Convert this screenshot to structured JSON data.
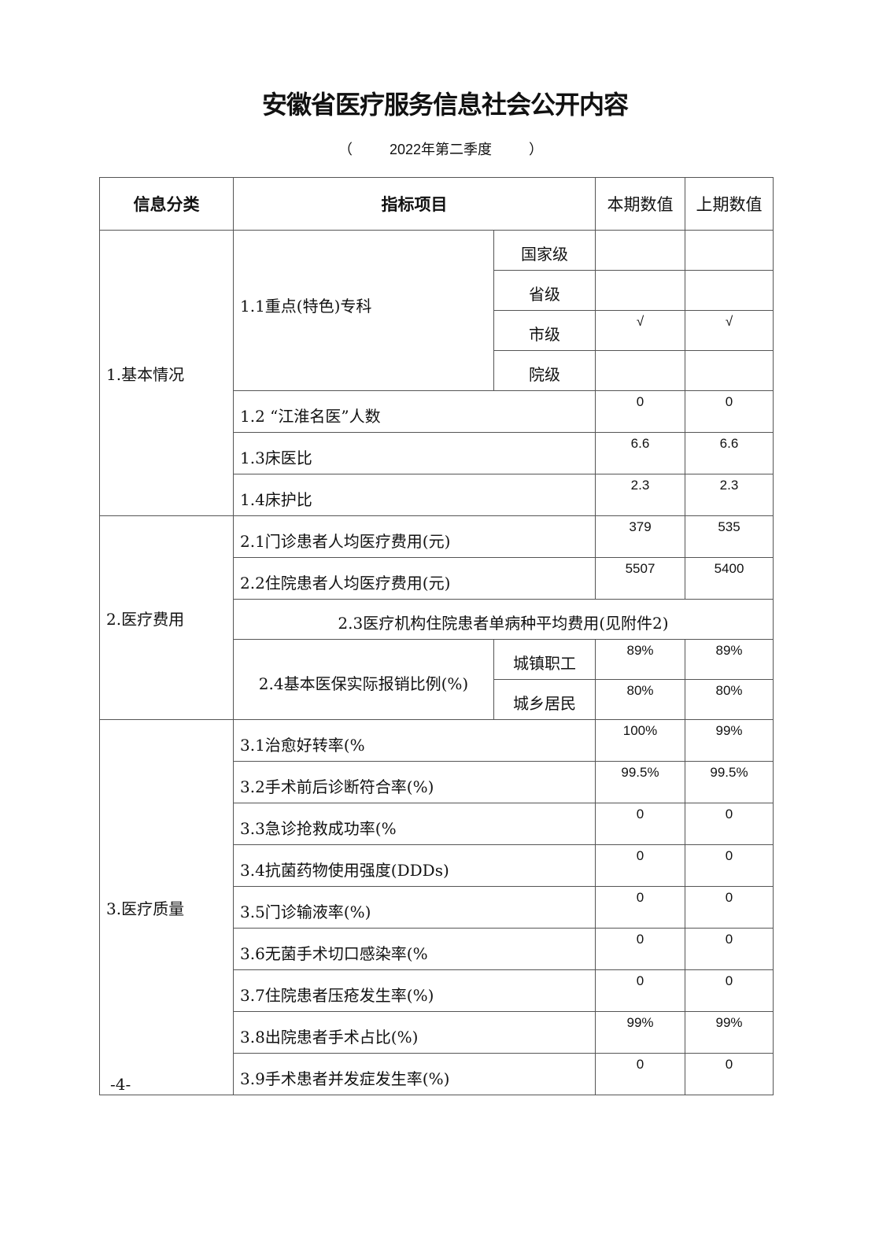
{
  "title": "安徽省医疗服务信息社会公开内容",
  "subtitle": {
    "open": "（",
    "period": "2022年第二季度",
    "close": "）"
  },
  "table": {
    "headers": {
      "category": "信息分类",
      "item": "指标项目",
      "current": "本期数值",
      "previous": "上期数值"
    },
    "section1": {
      "category": "1.基本情况",
      "specialty": {
        "label": "1.1重点(特色)专科",
        "levels": [
          {
            "level": "国家级",
            "current": "",
            "previous": ""
          },
          {
            "level": "省级",
            "current": "",
            "previous": ""
          },
          {
            "level": "市级",
            "current": "√",
            "previous": "√"
          },
          {
            "level": "院级",
            "current": "",
            "previous": ""
          }
        ]
      },
      "rows": [
        {
          "label": "1.2 “江淮名医”人数",
          "current": "0",
          "previous": "0"
        },
        {
          "label": "1.3床医比",
          "current": "6.6",
          "previous": "6.6"
        },
        {
          "label": "1.4床护比",
          "current": "2.3",
          "previous": "2.3"
        }
      ]
    },
    "section2": {
      "category": "2.医疗费用",
      "rows": [
        {
          "label": "2.1门诊患者人均医疗费用(元)",
          "current": "379",
          "previous": "535"
        },
        {
          "label": "2.2住院患者人均医疗费用(元)",
          "current": "5507",
          "previous": "5400"
        }
      ],
      "note": "2.3医疗机构住院患者单病种平均费用(见附件2)",
      "insurance": {
        "label": "2.4基本医保实际报销比例(%)",
        "types": [
          {
            "type": "城镇职工",
            "current": "89%",
            "previous": "89%"
          },
          {
            "type": "城乡居民",
            "current": "80%",
            "previous": "80%"
          }
        ]
      }
    },
    "section3": {
      "category": "3.医疗质量",
      "rows": [
        {
          "label": "3.1治愈好转率(%",
          "current": "100%",
          "previous": "99%"
        },
        {
          "label": "3.2手术前后诊断符合率(%)",
          "current": "99.5%",
          "previous": "99.5%"
        },
        {
          "label": "3.3急诊抢救成功率(%",
          "current": "0",
          "previous": "0"
        },
        {
          "label": "3.4抗菌药物使用强度(DDDs)",
          "current": "0",
          "previous": "0"
        },
        {
          "label": "3.5门诊输液率(%)",
          "current": "0",
          "previous": "0"
        },
        {
          "label": "3.6无菌手术切口感染率(%",
          "current": "0",
          "previous": "0"
        },
        {
          "label": "3.7住院患者压疮发生率(%)",
          "current": "0",
          "previous": "0"
        },
        {
          "label": "3.8出院患者手术占比(%)",
          "current": "99%",
          "previous": "99%"
        },
        {
          "label": "3.9手术患者并发症发生率(%)",
          "current": "0",
          "previous": "0"
        }
      ]
    }
  },
  "page_number": "-4-"
}
